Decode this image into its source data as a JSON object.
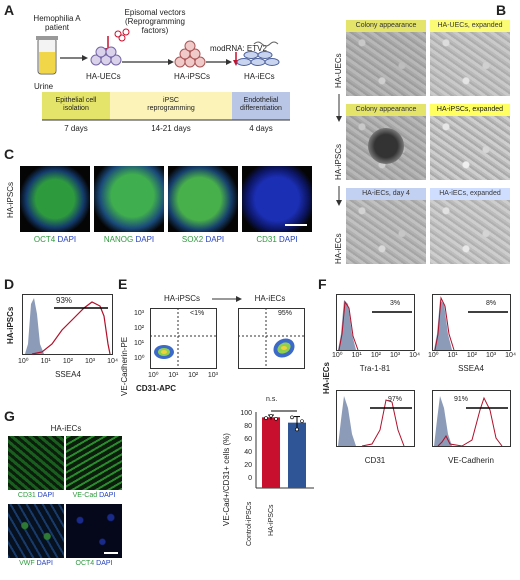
{
  "panels": {
    "A": "A",
    "B": "B",
    "C": "C",
    "D": "D",
    "E": "E",
    "F": "F",
    "G": "G"
  },
  "panelA": {
    "patient": "Hemophilia A\npatient",
    "vectors": "Episomal vectors\n(Reprogramming\nfactors)",
    "modrna": "modRNA: ETV2",
    "urine": "Urine",
    "uecs": "HA-UECs",
    "ipscs": "HA-iPSCs",
    "iecs": "HA-iECs",
    "step1": "Epithelial cell\nisolation",
    "step2": "iPSC\nreprogramming",
    "step3": "Endothelial\ndifferentiation",
    "t1": "7 days",
    "t2": "14-21 days",
    "t3": "4 days"
  },
  "panelB": {
    "row1_label": "HA-UECs",
    "row2_label": "HA-iPSCs",
    "row3_label": "HA-iECs",
    "r1c1": "Colony appearance",
    "r1c2": "HA-UECs, expanded",
    "r2c1": "Colony appearance",
    "r2c2": "HA-iPSCs, expanded",
    "r3c1": "HA-iECs, day 4",
    "r3c2": "HA-iECs, expanded"
  },
  "panelC": {
    "rowlabel": "HA-iPSCs",
    "m1": "OCT4",
    "m2": "NANOG",
    "m3": "SOX2",
    "m4": "CD31",
    "dapi": "DAPI"
  },
  "panelD": {
    "rowlabel": "HA-iPSCs",
    "pct": "93%",
    "xlabel": "SSEA4",
    "ticks": [
      "10⁰",
      "10¹",
      "10²",
      "10³",
      "10⁴"
    ]
  },
  "panelE": {
    "left_title": "HA-iPSCs",
    "right_title": "HA-iECs",
    "left_pct": "<1%",
    "right_pct": "95%",
    "ylabel": "VE-Cadherin-PE",
    "xlabel": "CD31-APC",
    "yticks": [
      "10³",
      "10²",
      "10¹",
      "10⁰"
    ],
    "xticks": [
      "10⁰",
      "10¹",
      "10²",
      "10³"
    ],
    "bar_ylabel": "VE-Cad+/CD31+ cells (%)",
    "bar_yticks": [
      "100",
      "80",
      "60",
      "40",
      "20",
      "0"
    ],
    "ns": "n.s."
  },
  "panelF": {
    "rowlabel": "HA-iECs",
    "h1": {
      "label": "Tra-1-81",
      "pct": "3%"
    },
    "h2": {
      "label": "SSEA4",
      "pct": "8%"
    },
    "h3": {
      "label": "CD31",
      "pct": "97%"
    },
    "h4": {
      "label": "VE-Cadherin",
      "pct": "91%"
    },
    "ticks": [
      "10⁰",
      "10¹",
      "10²",
      "10³",
      "10⁴"
    ]
  },
  "panelG": {
    "title": "HA-iECs",
    "m1": "CD31",
    "m2": "VE-Cad",
    "m3": "VWF",
    "m4": "OCT4",
    "dapi": "DAPI"
  },
  "chart_data": {
    "type": "bar",
    "categories": [
      "Control-iPSCs",
      "HA-iPSCs"
    ],
    "values": [
      93,
      86
    ],
    "errors": [
      3,
      8
    ],
    "points": [
      [
        92,
        95,
        91
      ],
      [
        93,
        77,
        88
      ]
    ],
    "ylabel": "VE-Cad+/CD31+ cells (%)",
    "ylim": [
      0,
      100
    ],
    "colors": [
      "#c8102e",
      "#2f5597"
    ]
  }
}
